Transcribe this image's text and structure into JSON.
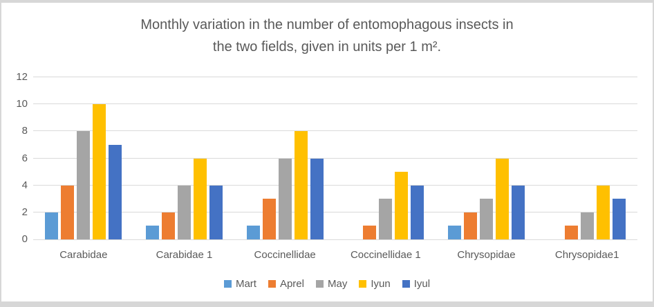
{
  "frame": {
    "background": "#ffffff",
    "border_color": "#d7d7d7",
    "text_color": "#595959",
    "gridline_color": "#d9d9d9"
  },
  "chart_data": {
    "type": "bar",
    "title": "Monthly variation in the number of entomophagous insects in the two fields, given in units per 1 m².",
    "title_lines": [
      "Monthly variation in the number of entomophagous insects in",
      "the two fields, given in units per 1 m²."
    ],
    "categories": [
      "Carabidae",
      "Carabidae 1",
      "Coccinellidae",
      "Coccinellidae 1",
      "Chrysopidae",
      "Chrysopidae1"
    ],
    "series": [
      {
        "name": "Mart",
        "color": "#5b9bd5",
        "values": [
          2,
          1,
          1,
          0,
          1,
          0
        ]
      },
      {
        "name": "Aprel",
        "color": "#ed7d31",
        "values": [
          4,
          2,
          3,
          1,
          2,
          1
        ]
      },
      {
        "name": "May",
        "color": "#a5a5a5",
        "values": [
          8,
          4,
          6,
          3,
          3,
          2
        ]
      },
      {
        "name": "Iyun",
        "color": "#ffc000",
        "values": [
          10,
          6,
          8,
          5,
          6,
          4
        ]
      },
      {
        "name": "Iyul",
        "color": "#4472c4",
        "values": [
          7,
          4,
          6,
          4,
          4,
          3
        ]
      }
    ],
    "xlabel": "",
    "ylabel": "",
    "ylim": [
      0,
      12
    ],
    "yticks": [
      "0",
      "2",
      "4",
      "6",
      "8",
      "10",
      "12"
    ],
    "grid": true,
    "legend_position": "bottom"
  }
}
